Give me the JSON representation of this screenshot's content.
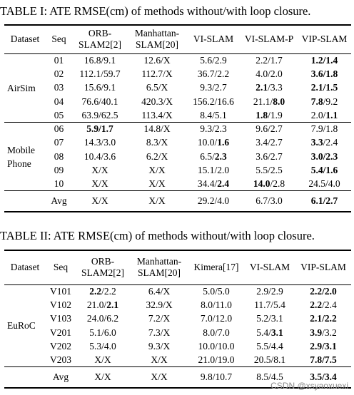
{
  "table1": {
    "caption": "TABLE I: ATE RMSE(cm) of methods without/with loop closure.",
    "headers": [
      "Dataset",
      "Seq",
      "ORB-\nSLAM2[2]",
      "Manhattan-\nSLAM[20]",
      "VI-SLAM",
      "VI-SLAM-P",
      "VIP-SLAM"
    ],
    "groups": [
      {
        "dataset": "AirSim",
        "rows": [
          [
            "01",
            "16.8/9.1",
            "12.6/X",
            "5.6/2.9",
            "2.2/1.7",
            "**1.2/1.4**"
          ],
          [
            "02",
            "112.1/59.7",
            "112.7/X",
            "36.7/2.2",
            "4.0/2.0",
            "**3.6/1.8**"
          ],
          [
            "03",
            "15.6/9.1",
            "6.5/X",
            "9.3/2.7",
            "**2.1**/3.3",
            "**2.1/1.5**"
          ],
          [
            "04",
            "76.6/40.1",
            "420.3/X",
            "156.2/16.6",
            "21.1/**8.0**",
            "**7.8**/9.2"
          ],
          [
            "05",
            "63.9/62.5",
            "113.4/X",
            "8.4/5.1",
            "**1.8**/1.9",
            "2.0/**1.1**"
          ]
        ]
      },
      {
        "dataset": "Mobile\nPhone",
        "rows": [
          [
            "06",
            "**5.9/1.7**",
            "14.8/X",
            "9.3/2.3",
            "9.6/2.7",
            "7.9/1.8"
          ],
          [
            "07",
            "14.3/3.0",
            "8.3/X",
            "10.0/**1.6**",
            "3.4/2.7",
            "**3.3**/2.4"
          ],
          [
            "08",
            "10.4/3.6",
            "6.2/X",
            "6.5/**2.3**",
            "3.6/2.7",
            "**3.0/2.3**"
          ],
          [
            "09",
            "X/X",
            "X/X",
            "15.1/2.0",
            "5.5/2.5",
            "**5.4/1.6**"
          ],
          [
            "10",
            "X/X",
            "X/X",
            "34.4/**2.4**",
            "**14.0**/2.8",
            "24.5/4.0"
          ]
        ]
      }
    ],
    "avg": [
      "Avg",
      "X/X",
      "X/X",
      "29.2/4.0",
      "6.7/3.0",
      "**6.1/2.7**"
    ]
  },
  "table2": {
    "caption": "TABLE II: ATE RMSE(cm) of methods without/with loop closure.",
    "headers": [
      "Dataset",
      "Seq",
      "ORB-\nSLAM2[2]",
      "Manhattan-\nSLAM[20]",
      "Kimera[17]",
      "VI-SLAM",
      "VIP-SLAM"
    ],
    "groups": [
      {
        "dataset": "EuRoC",
        "rows": [
          [
            "V101",
            "**2.2**/2.2",
            "6.4/X",
            "5.0/5.0",
            "2.9/2.9",
            "**2.2/2.0**"
          ],
          [
            "V102",
            "21.0/**2.1**",
            "32.9/X",
            "8.0/11.0",
            "11.7/5.4",
            "**2.2**/2.4"
          ],
          [
            "V103",
            "24.0/6.2",
            "7.2/X",
            "7.0/12.0",
            "5.2/3.1",
            "**2.1/2.2**"
          ],
          [
            "V201",
            "5.1/6.0",
            "7.3/X",
            "8.0/7.0",
            "5.4/**3.1**",
            "**3.9**/3.2"
          ],
          [
            "V202",
            "5.3/4.0",
            "9.3/X",
            "10.0/10.0",
            "5.5/4.4",
            "**2.9/3.1**"
          ],
          [
            "V203",
            "X/X",
            "X/X",
            "21.0/19.0",
            "20.5/8.1",
            "**7.8/7.5**"
          ]
        ]
      }
    ],
    "avg": [
      "Avg",
      "X/X",
      "X/X",
      "9.8/10.7",
      "8.5/4.5",
      "**3.5/3.4**"
    ]
  },
  "watermark": "CSDN @xsyaoxuexi"
}
